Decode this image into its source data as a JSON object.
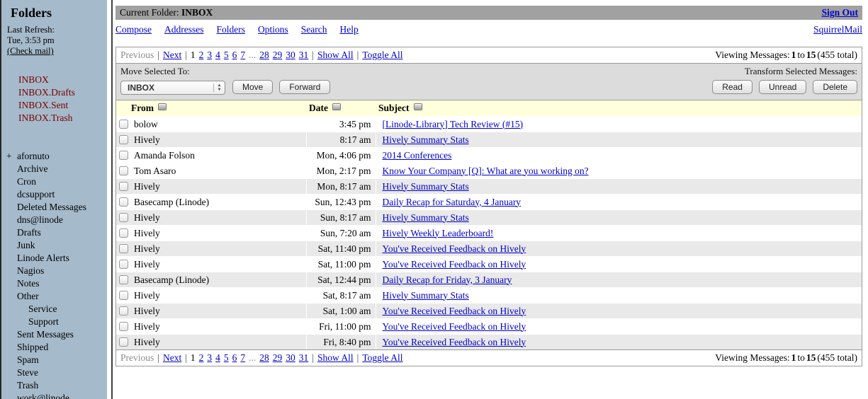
{
  "colors": {
    "sidebar_bg": "#A5BACA",
    "titlebar_bg": "#A1A1A1",
    "controls_bg": "#DCDCDC",
    "table_header_bg": "#FFFFDC",
    "shaded_row_bg": "#E9E9E9",
    "link_blue": "#0000CC",
    "mailbox_maroon": "#7A0000"
  },
  "sidebar": {
    "title": "Folders",
    "last_refresh_label": "Last Refresh:",
    "last_refresh_time": "Tue, 3:53 pm",
    "check_mail": "(Check mail)",
    "mailboxes": [
      "INBOX",
      "INBOX.Drafts",
      "INBOX.Sent",
      "INBOX.Trash"
    ],
    "folders": [
      {
        "label": "afornuto",
        "prefix": "+",
        "indent": 0
      },
      {
        "label": "Archive",
        "indent": 0
      },
      {
        "label": "Cron",
        "indent": 0
      },
      {
        "label": "dcsupport",
        "indent": 0
      },
      {
        "label": "Deleted Messages",
        "indent": 0
      },
      {
        "label": "dns@linode",
        "indent": 0
      },
      {
        "label": "Drafts",
        "indent": 0
      },
      {
        "label": "Junk",
        "indent": 0
      },
      {
        "label": "Linode Alerts",
        "indent": 0
      },
      {
        "label": "Nagios",
        "indent": 0
      },
      {
        "label": "Notes",
        "indent": 0
      },
      {
        "label": "Other",
        "indent": 0
      },
      {
        "label": "Service",
        "indent": 1
      },
      {
        "label": "Support",
        "indent": 1
      },
      {
        "label": "Sent Messages",
        "indent": 0
      },
      {
        "label": "Shipped",
        "indent": 0
      },
      {
        "label": "Spam",
        "indent": 0
      },
      {
        "label": "Steve",
        "indent": 0
      },
      {
        "label": "Trash",
        "indent": 0
      },
      {
        "label": "work@linode",
        "indent": 0
      }
    ]
  },
  "header": {
    "current_folder_label": "Current Folder:",
    "current_folder": "INBOX",
    "sign_out": "Sign Out",
    "nav": [
      "Compose",
      "Addresses",
      "Folders",
      "Options",
      "Search",
      "Help"
    ],
    "brand": "SquirrelMail"
  },
  "pagination": {
    "previous": "Previous",
    "next": "Next",
    "current_page": "1",
    "pages_before_ellipsis": [
      "2",
      "3",
      "4",
      "5",
      "6",
      "7"
    ],
    "ellipsis": "...",
    "pages_after_ellipsis": [
      "28",
      "29",
      "30",
      "31"
    ],
    "show_all": "Show All",
    "toggle_all": "Toggle All",
    "viewing_label": "Viewing Messages:",
    "viewing_from": "1",
    "viewing_to_word": "to",
    "viewing_to": "15",
    "viewing_total": "(455 total)"
  },
  "controls": {
    "move_label": "Move Selected To:",
    "folder_select_value": "INBOX",
    "move_button": "Move",
    "forward_button": "Forward",
    "transform_label": "Transform Selected Messages:",
    "read_button": "Read",
    "unread_button": "Unread",
    "delete_button": "Delete"
  },
  "message_table": {
    "columns": [
      "From",
      "Date",
      "Subject"
    ],
    "rows": [
      {
        "from": "bolow",
        "date": "3:45 pm",
        "subject": "[Linode-Library] Tech Review (#15)",
        "shaded": false
      },
      {
        "from": "Hively",
        "date": "8:17 am",
        "subject": "Hively Summary Stats",
        "shaded": true
      },
      {
        "from": "Amanda Folson",
        "date": "Mon, 4:06 pm",
        "subject": "2014 Conferences",
        "shaded": false
      },
      {
        "from": "Tom Asaro",
        "date": "Mon, 2:17 pm",
        "subject": "Know Your Company [Q]: What are you working on?",
        "shaded": false
      },
      {
        "from": "Hively",
        "date": "Mon, 8:17 am",
        "subject": "Hively Summary Stats",
        "shaded": true
      },
      {
        "from": "Basecamp (Linode)",
        "date": "Sun, 12:43 pm",
        "subject": "Daily Recap for Saturday, 4 January",
        "shaded": false
      },
      {
        "from": "Hively",
        "date": "Sun, 8:17 am",
        "subject": "Hively Summary Stats",
        "shaded": true
      },
      {
        "from": "Hively",
        "date": "Sun, 7:20 am",
        "subject": "Hively Weekly Leaderboard!",
        "shaded": false
      },
      {
        "from": "Hively",
        "date": "Sat, 11:40 pm",
        "subject": "You've Received Feedback on Hively",
        "shaded": true
      },
      {
        "from": "Hively",
        "date": "Sat, 11:00 pm",
        "subject": "You've Received Feedback on Hively",
        "shaded": false
      },
      {
        "from": "Basecamp (Linode)",
        "date": "Sat, 12:44 pm",
        "subject": "Daily Recap for Friday, 3 January",
        "shaded": true
      },
      {
        "from": "Hively",
        "date": "Sat, 8:17 am",
        "subject": "Hively Summary Stats",
        "shaded": false
      },
      {
        "from": "Hively",
        "date": "Sat, 1:00 am",
        "subject": "You've Received Feedback on Hively",
        "shaded": true
      },
      {
        "from": "Hively",
        "date": "Fri, 11:00 pm",
        "subject": "You've Received Feedback on Hively",
        "shaded": false
      },
      {
        "from": "Hively",
        "date": "Fri, 8:40 pm",
        "subject": "You've Received Feedback on Hively",
        "shaded": true
      }
    ]
  }
}
